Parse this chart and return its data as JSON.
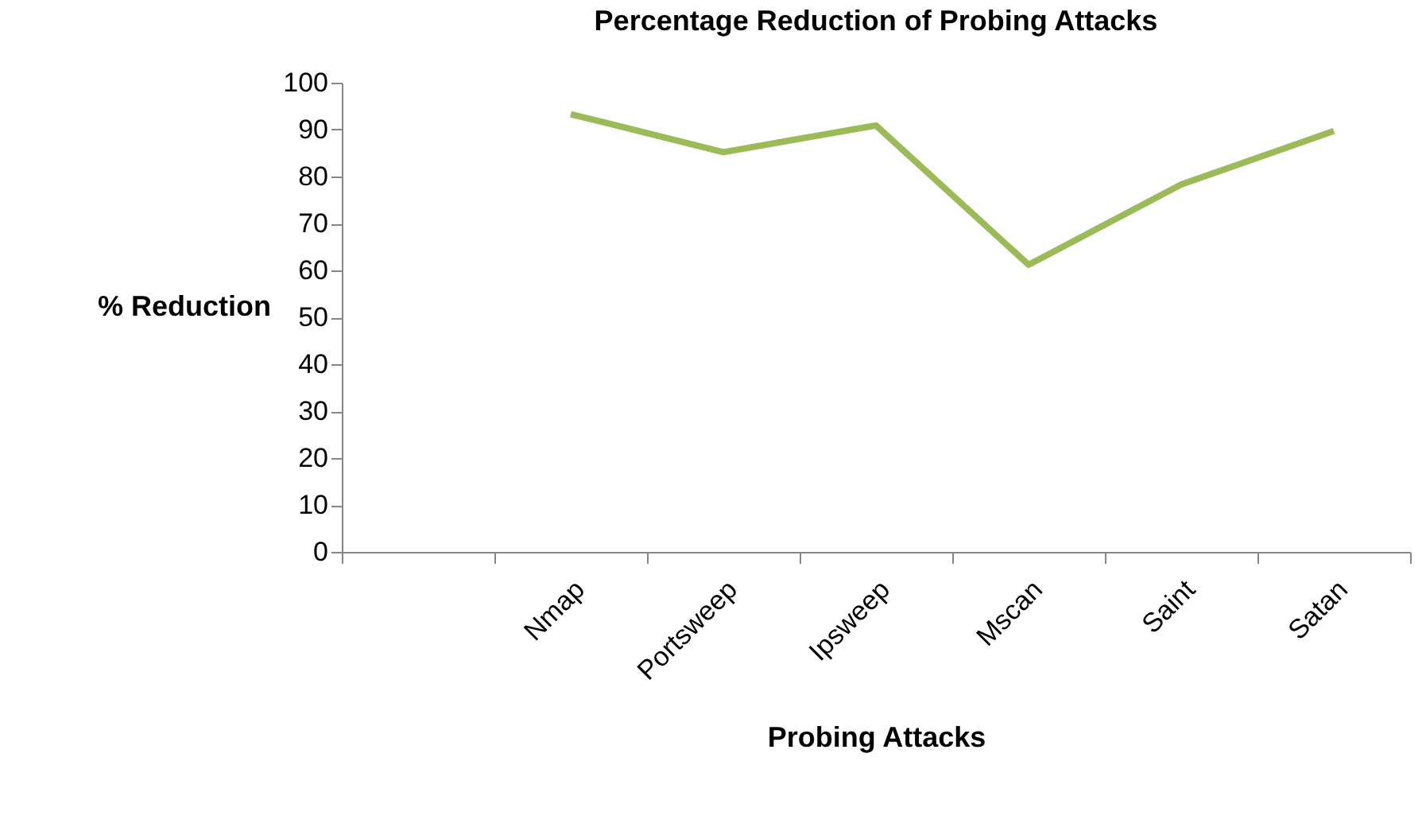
{
  "chart_data": {
    "type": "line",
    "title": "Percentage Reduction of Probing Attacks",
    "xlabel": "Probing Attacks",
    "ylabel": "% Reduction",
    "categories": [
      null,
      "Nmap",
      "Portsweep",
      "Ipsweep",
      "Mscan",
      "Saint",
      "Satan"
    ],
    "series": [
      {
        "color": "#9bbb59",
        "values": [
          null,
          93.3,
          85.2,
          90.9,
          61.2,
          78.3,
          89.7
        ]
      }
    ],
    "ylim": [
      0,
      100
    ],
    "yticks": [
      0,
      10,
      20,
      30,
      40,
      50,
      60,
      70,
      80,
      90,
      100
    ],
    "grid": false,
    "legend": false,
    "marker": "none",
    "line_style": "solid"
  }
}
